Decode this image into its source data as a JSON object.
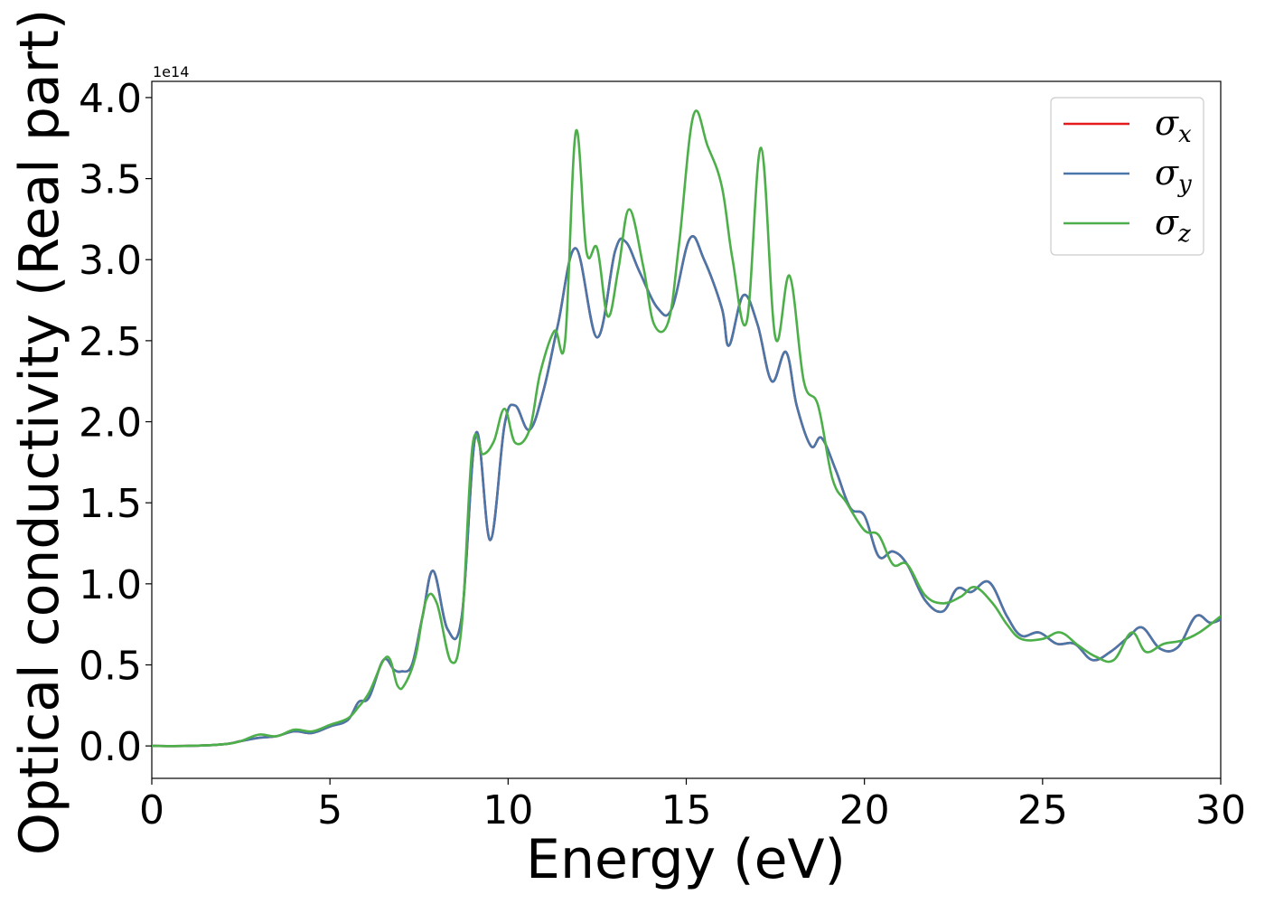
{
  "chart_data": {
    "type": "line",
    "title": "",
    "xlabel": "Energy (eV)",
    "ylabel": "Optical conductivity (Real part)",
    "y_offset_label": "1e14",
    "xlim": [
      0,
      30
    ],
    "ylim": [
      -0.2,
      4.1
    ],
    "x_ticks": [
      0,
      5,
      10,
      15,
      20,
      25,
      30
    ],
    "x_tick_labels": [
      "0",
      "5",
      "10",
      "15",
      "20",
      "25",
      "30"
    ],
    "y_ticks": [
      0.0,
      0.5,
      1.0,
      1.5,
      2.0,
      2.5,
      3.0,
      3.5,
      4.0
    ],
    "y_tick_labels": [
      "0.0",
      "0.5",
      "1.0",
      "1.5",
      "2.0",
      "2.5",
      "3.0",
      "3.5",
      "4.0"
    ],
    "grid": false,
    "legend_position": "top-right",
    "series": [
      {
        "name": "σx",
        "legend_symbol": "σ",
        "legend_sub": "x",
        "color": "#e41a1c",
        "x": [
          0,
          1,
          2,
          2.5,
          3,
          3.5,
          4,
          4.5,
          5,
          5.5,
          5.8,
          6.1,
          6.5,
          6.8,
          7.0,
          7.3,
          7.6,
          7.9,
          8.3,
          8.7,
          9.1,
          9.5,
          9.9,
          10.2,
          10.6,
          11.0,
          11.4,
          11.9,
          12.5,
          13.0,
          13.3,
          13.7,
          14.2,
          14.6,
          15.1,
          15.5,
          16.0,
          16.2,
          16.6,
          17.0,
          17.4,
          17.8,
          18.1,
          18.5,
          18.8,
          19.2,
          19.6,
          20.0,
          20.4,
          20.8,
          21.2,
          21.7,
          22.2,
          22.6,
          23.0,
          23.5,
          24.0,
          24.4,
          24.9,
          25.4,
          25.9,
          26.4,
          26.9,
          27.4,
          27.8,
          28.3,
          28.8,
          29.3,
          29.7,
          30
        ],
        "y": [
          0,
          0,
          0.01,
          0.03,
          0.05,
          0.06,
          0.09,
          0.08,
          0.12,
          0.16,
          0.27,
          0.3,
          0.53,
          0.47,
          0.46,
          0.5,
          0.8,
          1.08,
          0.72,
          0.8,
          1.93,
          1.27,
          1.98,
          2.1,
          1.95,
          2.2,
          2.6,
          3.07,
          2.52,
          3.05,
          3.11,
          2.92,
          2.7,
          2.7,
          3.13,
          3.0,
          2.7,
          2.47,
          2.78,
          2.6,
          2.25,
          2.43,
          2.1,
          1.85,
          1.9,
          1.7,
          1.47,
          1.42,
          1.17,
          1.2,
          1.12,
          0.9,
          0.83,
          0.97,
          0.95,
          1.01,
          0.8,
          0.68,
          0.7,
          0.63,
          0.63,
          0.53,
          0.58,
          0.67,
          0.73,
          0.6,
          0.61,
          0.8,
          0.76,
          0.78
        ]
      },
      {
        "name": "σy",
        "legend_symbol": "σ",
        "legend_sub": "y",
        "color": "#4a77a9",
        "x": [
          0,
          1,
          2,
          2.5,
          3,
          3.5,
          4,
          4.5,
          5,
          5.5,
          5.8,
          6.1,
          6.5,
          6.8,
          7.0,
          7.3,
          7.6,
          7.9,
          8.3,
          8.7,
          9.1,
          9.5,
          9.9,
          10.2,
          10.6,
          11.0,
          11.4,
          11.9,
          12.5,
          13.0,
          13.3,
          13.7,
          14.2,
          14.6,
          15.1,
          15.5,
          16.0,
          16.2,
          16.6,
          17.0,
          17.4,
          17.8,
          18.1,
          18.5,
          18.8,
          19.2,
          19.6,
          20.0,
          20.4,
          20.8,
          21.2,
          21.7,
          22.2,
          22.6,
          23.0,
          23.5,
          24.0,
          24.4,
          24.9,
          25.4,
          25.9,
          26.4,
          26.9,
          27.4,
          27.8,
          28.3,
          28.8,
          29.3,
          29.7,
          30
        ],
        "y": [
          0,
          0,
          0.01,
          0.03,
          0.05,
          0.06,
          0.09,
          0.08,
          0.12,
          0.16,
          0.27,
          0.3,
          0.53,
          0.47,
          0.46,
          0.5,
          0.8,
          1.08,
          0.72,
          0.8,
          1.93,
          1.27,
          1.98,
          2.1,
          1.95,
          2.2,
          2.6,
          3.07,
          2.52,
          3.05,
          3.11,
          2.92,
          2.7,
          2.7,
          3.13,
          3.0,
          2.7,
          2.47,
          2.78,
          2.6,
          2.25,
          2.43,
          2.1,
          1.85,
          1.9,
          1.7,
          1.47,
          1.42,
          1.17,
          1.2,
          1.12,
          0.9,
          0.83,
          0.97,
          0.95,
          1.01,
          0.8,
          0.68,
          0.7,
          0.63,
          0.63,
          0.53,
          0.58,
          0.67,
          0.73,
          0.6,
          0.61,
          0.8,
          0.76,
          0.78
        ]
      },
      {
        "name": "σz",
        "legend_symbol": "σ",
        "legend_sub": "z",
        "color": "#4daf4a",
        "x": [
          0,
          1,
          2,
          2.5,
          3,
          3.5,
          4,
          4.5,
          5,
          5.5,
          5.8,
          6.1,
          6.6,
          6.9,
          7.1,
          7.4,
          7.7,
          8.0,
          8.4,
          8.7,
          9.0,
          9.3,
          9.6,
          9.9,
          10.2,
          10.6,
          10.9,
          11.3,
          11.6,
          11.9,
          12.2,
          12.5,
          12.8,
          13.1,
          13.4,
          13.8,
          14.1,
          14.5,
          14.8,
          15.2,
          15.6,
          16.0,
          16.3,
          16.7,
          17.1,
          17.5,
          17.9,
          18.3,
          18.7,
          19.1,
          19.5,
          20.0,
          20.4,
          20.8,
          21.2,
          21.7,
          22.2,
          22.7,
          23.1,
          23.6,
          24.0,
          24.4,
          25.0,
          25.5,
          26.0,
          26.5,
          27.0,
          27.5,
          27.9,
          28.4,
          28.9,
          29.4,
          30
        ],
        "y": [
          0,
          0,
          0.01,
          0.03,
          0.07,
          0.06,
          0.1,
          0.09,
          0.13,
          0.17,
          0.24,
          0.33,
          0.55,
          0.37,
          0.38,
          0.55,
          0.9,
          0.88,
          0.52,
          0.75,
          1.85,
          1.8,
          1.88,
          2.08,
          1.87,
          1.95,
          2.3,
          2.56,
          2.5,
          3.79,
          3.05,
          3.07,
          2.65,
          2.95,
          3.31,
          2.95,
          2.6,
          2.62,
          3.1,
          3.89,
          3.7,
          3.45,
          3.0,
          2.62,
          3.69,
          2.52,
          2.9,
          2.25,
          2.1,
          1.65,
          1.5,
          1.33,
          1.3,
          1.12,
          1.12,
          0.93,
          0.88,
          0.92,
          0.98,
          0.88,
          0.75,
          0.66,
          0.66,
          0.7,
          0.62,
          0.55,
          0.53,
          0.7,
          0.58,
          0.63,
          0.65,
          0.7,
          0.8
        ]
      }
    ]
  }
}
